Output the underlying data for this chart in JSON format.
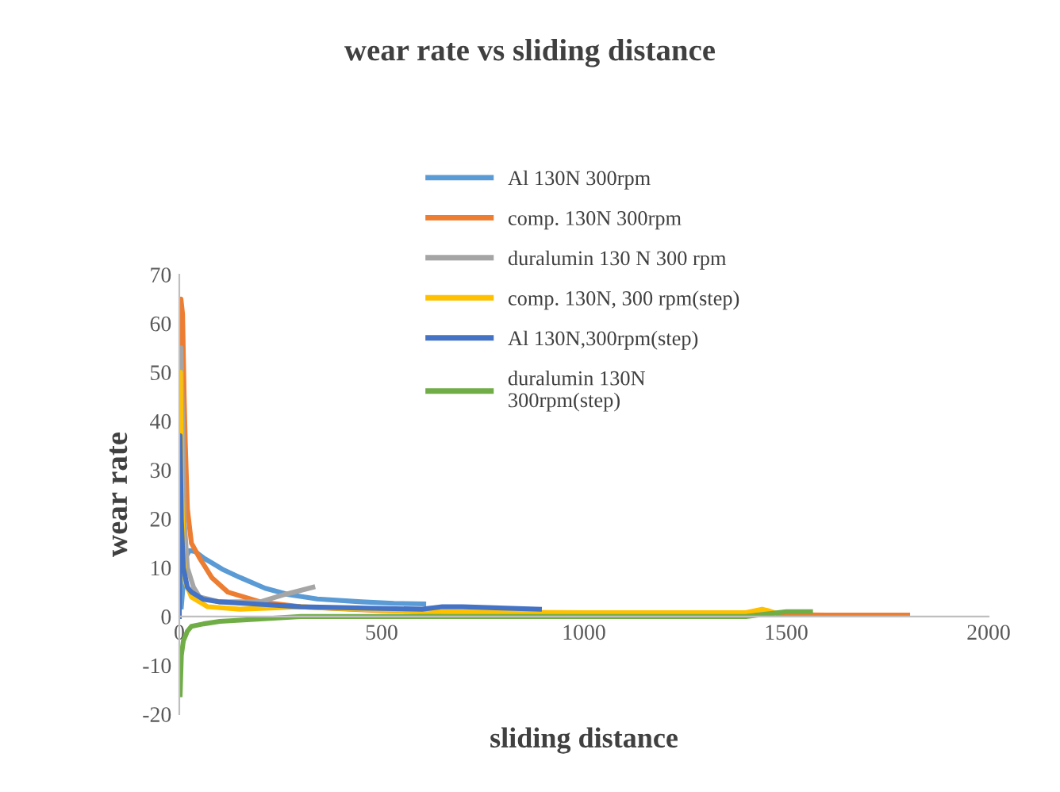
{
  "chart_data": {
    "type": "line",
    "title": "wear rate vs sliding distance",
    "xlabel": "sliding distance",
    "ylabel": "wear rate",
    "xlim": [
      0,
      2000
    ],
    "xticks": [
      0,
      500,
      1000,
      1500,
      2000
    ],
    "ylim": [
      -20,
      70
    ],
    "yticks": [
      -20,
      -10,
      0,
      10,
      20,
      30,
      40,
      50,
      60,
      70
    ],
    "grid": false,
    "legend": "top",
    "marker": "none",
    "line_style": "solid",
    "series": [
      {
        "name": "Al 130N 300rpm",
        "color": "#5b9bd5",
        "x": [
          5,
          15,
          25,
          39,
          60,
          80,
          106,
          150,
          212,
          270,
          341,
          450,
          530,
          604
        ],
        "values": [
          2,
          12,
          13.5,
          13.3,
          12,
          11,
          9.7,
          8,
          5.8,
          4.5,
          3.6,
          3,
          2.7,
          2.6
        ]
      },
      {
        "name": "comp. 130N 300rpm",
        "color": "#ed7d31",
        "x": [
          1,
          4,
          8,
          12,
          15,
          20,
          30,
          50,
          80,
          120,
          200,
          300,
          500,
          700,
          1000,
          1400,
          1600,
          1800
        ],
        "values": [
          40,
          65,
          62,
          45,
          35,
          22,
          15,
          12,
          8,
          5,
          3,
          2,
          1.2,
          0.8,
          0.5,
          0.4,
          0.3,
          0.3
        ]
      },
      {
        "name": "duralumin 130 N 300 rpm",
        "color": "#a5a5a5",
        "x": [
          1,
          4,
          8,
          12,
          20,
          35,
          50,
          100,
          150,
          200,
          260,
          330
        ],
        "values": [
          30,
          55,
          40,
          20,
          10,
          6,
          4,
          3,
          3,
          3,
          4.5,
          6
        ]
      },
      {
        "name": "comp. 130N, 300 rpm(step)",
        "color": "#ffc000",
        "x": [
          1,
          3,
          6,
          10,
          15,
          30,
          70,
          150,
          300,
          600,
          1000,
          1400,
          1440,
          1455,
          1470
        ],
        "values": [
          30,
          50,
          25,
          12,
          7,
          4,
          2,
          1.5,
          2,
          1,
          0.8,
          0.8,
          1.5,
          1.2,
          0.8
        ]
      },
      {
        "name": "Al 130N,300rpm(step)",
        "color": "#4472c4",
        "x": [
          0,
          2,
          5,
          10,
          20,
          30,
          60,
          100,
          200,
          300,
          600,
          650,
          700,
          890
        ],
        "values": [
          0,
          37,
          20,
          10,
          6,
          5,
          3.5,
          3,
          2.5,
          2,
          1.5,
          2,
          2,
          1.5
        ]
      },
      {
        "name": "duralumin 130N\n300rpm(step)",
        "color": "#70ad47",
        "x": [
          2,
          5,
          10,
          20,
          30,
          60,
          100,
          200,
          300,
          700,
          1400,
          1450,
          1500,
          1560
        ],
        "values": [
          -16,
          -8,
          -5,
          -3,
          -2,
          -1.5,
          -1,
          -0.5,
          0,
          0,
          0,
          0.5,
          1,
          1
        ]
      }
    ]
  }
}
